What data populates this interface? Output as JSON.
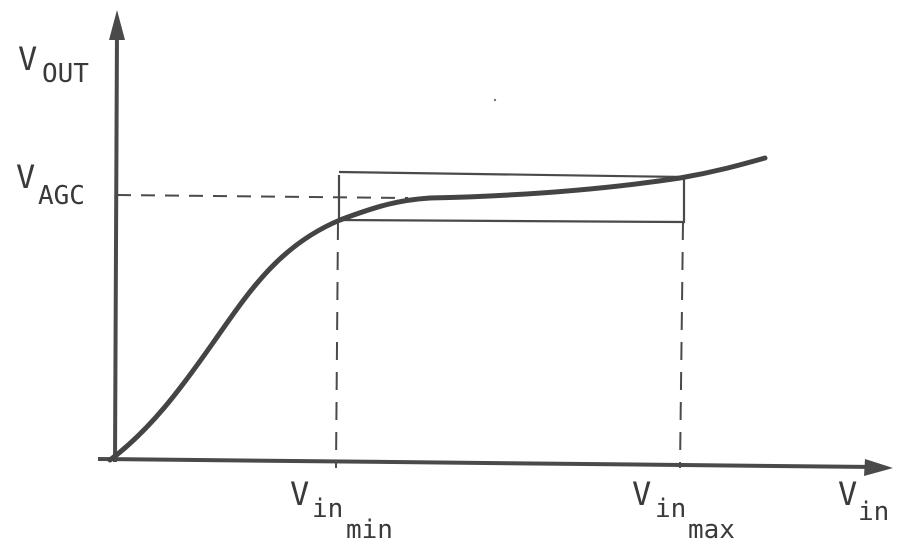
{
  "diagram": {
    "y_axis": {
      "label_main": "V",
      "label_sub": "OUT"
    },
    "x_axis": {
      "label_main": "V",
      "label_sub": "in"
    },
    "agc_level": {
      "label_main": "V",
      "label_sub": "AGC"
    },
    "vin_min": {
      "label_main": "V",
      "label_sub": "in",
      "label_subsub": "min"
    },
    "vin_max": {
      "label_main": "V",
      "label_sub": "in",
      "label_subsub": "max"
    }
  },
  "colors": {
    "ink": "#444444",
    "background": "#ffffff"
  }
}
